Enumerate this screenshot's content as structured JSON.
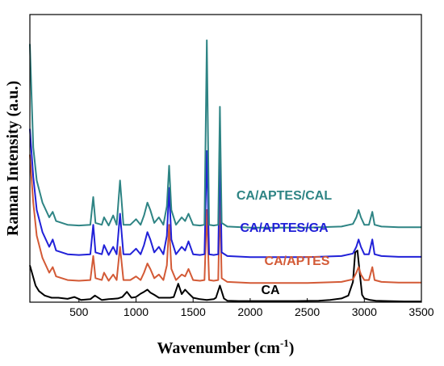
{
  "chart_data": {
    "type": "line",
    "title": "",
    "xlabel": "Wavenumber (cm",
    "xlabel_sup": "-1",
    "xlabel_end": ")",
    "ylabel": "Raman Intensity (a.u.)",
    "xlim": [
      70,
      3500
    ],
    "x_ticks": [
      500,
      1000,
      1500,
      2000,
      2500,
      3000,
      3500
    ],
    "x_tick_labels": [
      "500",
      "1000",
      "1500",
      "2000",
      "2500",
      "3000",
      "3500"
    ],
    "y_ticks_shown": false,
    "grid": false,
    "legend": "none",
    "series": [
      {
        "name": "CA",
        "color": "#000000",
        "baseline": 0.0,
        "x": [
          70,
          120,
          150,
          200,
          260,
          320,
          400,
          460,
          520,
          600,
          640,
          700,
          760,
          800,
          840,
          880,
          920,
          960,
          1000,
          1040,
          1070,
          1100,
          1125,
          1160,
          1200,
          1250,
          1300,
          1330,
          1370,
          1400,
          1430,
          1460,
          1500,
          1560,
          1620,
          1680,
          1700,
          1735,
          1770,
          1800,
          1900,
          2000,
          2200,
          2400,
          2600,
          2700,
          2800,
          2860,
          2900,
          2920,
          2940,
          2960,
          2980,
          3000,
          3050,
          3100,
          3200,
          3350,
          3500
        ],
        "y": [
          0.1,
          0.045,
          0.03,
          0.018,
          0.012,
          0.012,
          0.009,
          0.014,
          0.006,
          0.008,
          0.018,
          0.006,
          0.008,
          0.009,
          0.01,
          0.014,
          0.028,
          0.012,
          0.014,
          0.023,
          0.028,
          0.034,
          0.026,
          0.02,
          0.012,
          0.012,
          0.012,
          0.014,
          0.05,
          0.022,
          0.034,
          0.024,
          0.012,
          0.008,
          0.006,
          0.008,
          0.012,
          0.045,
          0.01,
          0.004,
          0.003,
          0.003,
          0.003,
          0.003,
          0.004,
          0.006,
          0.01,
          0.018,
          0.055,
          0.135,
          0.14,
          0.08,
          0.02,
          0.01,
          0.006,
          0.004,
          0.003,
          0.002,
          0.002
        ]
      },
      {
        "name": "CA/APTES",
        "color": "#d35a36",
        "baseline": 0.05,
        "x": [
          70,
          100,
          130,
          180,
          240,
          270,
          300,
          400,
          500,
          600,
          625,
          645,
          700,
          720,
          760,
          800,
          830,
          860,
          890,
          950,
          1000,
          1040,
          1070,
          1100,
          1125,
          1160,
          1200,
          1240,
          1270,
          1290,
          1310,
          1350,
          1400,
          1430,
          1460,
          1500,
          1560,
          1600,
          1620,
          1640,
          1680,
          1720,
          1735,
          1750,
          1800,
          2000,
          2500,
          2800,
          2900,
          2930,
          2950,
          2970,
          3000,
          3040,
          3070,
          3090,
          3150,
          3300,
          3500
        ],
        "y": [
          0.35,
          0.22,
          0.13,
          0.07,
          0.03,
          0.045,
          0.02,
          0.01,
          0.008,
          0.01,
          0.075,
          0.015,
          0.01,
          0.03,
          0.008,
          0.025,
          0.01,
          0.1,
          0.01,
          0.01,
          0.02,
          0.01,
          0.03,
          0.055,
          0.04,
          0.015,
          0.025,
          0.01,
          0.05,
          0.16,
          0.04,
          0.01,
          0.025,
          0.02,
          0.04,
          0.01,
          0.008,
          0.01,
          0.2,
          0.01,
          0.008,
          0.01,
          0.23,
          0.015,
          0.005,
          0.002,
          0.002,
          0.005,
          0.012,
          0.03,
          0.045,
          0.025,
          0.01,
          0.01,
          0.045,
          0.01,
          0.005,
          0.003,
          0.003
        ]
      },
      {
        "name": "CA/APTES/GA",
        "color": "#2121d8",
        "baseline": 0.12,
        "x": [
          70,
          100,
          130,
          180,
          240,
          270,
          300,
          400,
          500,
          600,
          625,
          645,
          700,
          720,
          760,
          800,
          830,
          860,
          890,
          950,
          1000,
          1040,
          1070,
          1100,
          1125,
          1160,
          1200,
          1240,
          1270,
          1290,
          1310,
          1350,
          1400,
          1430,
          1460,
          1500,
          1560,
          1600,
          1620,
          1640,
          1680,
          1720,
          1735,
          1750,
          1800,
          2000,
          2500,
          2800,
          2900,
          2930,
          2950,
          2970,
          3000,
          3040,
          3070,
          3090,
          3150,
          3300,
          3500
        ],
        "y": [
          0.35,
          0.22,
          0.13,
          0.07,
          0.03,
          0.05,
          0.02,
          0.01,
          0.008,
          0.01,
          0.09,
          0.015,
          0.01,
          0.035,
          0.008,
          0.03,
          0.01,
          0.12,
          0.01,
          0.01,
          0.025,
          0.01,
          0.035,
          0.07,
          0.05,
          0.015,
          0.03,
          0.01,
          0.06,
          0.19,
          0.05,
          0.01,
          0.03,
          0.02,
          0.045,
          0.01,
          0.008,
          0.01,
          0.29,
          0.01,
          0.008,
          0.01,
          0.29,
          0.015,
          0.005,
          0.002,
          0.002,
          0.005,
          0.012,
          0.03,
          0.05,
          0.03,
          0.01,
          0.01,
          0.05,
          0.01,
          0.005,
          0.003,
          0.003
        ]
      },
      {
        "name": "CA/APTES/CAL",
        "color": "#2e8484",
        "baseline": 0.2,
        "x": [
          70,
          100,
          130,
          180,
          240,
          270,
          300,
          400,
          500,
          600,
          625,
          645,
          700,
          720,
          760,
          800,
          830,
          860,
          890,
          950,
          1000,
          1040,
          1070,
          1100,
          1125,
          1160,
          1200,
          1240,
          1270,
          1290,
          1310,
          1350,
          1400,
          1430,
          1460,
          1500,
          1560,
          1600,
          1620,
          1640,
          1680,
          1720,
          1735,
          1750,
          1800,
          2000,
          2500,
          2800,
          2900,
          2930,
          2950,
          2970,
          3000,
          3040,
          3070,
          3090,
          3150,
          3300,
          3500
        ],
        "y": [
          0.5,
          0.22,
          0.13,
          0.07,
          0.03,
          0.045,
          0.02,
          0.01,
          0.008,
          0.01,
          0.085,
          0.015,
          0.01,
          0.03,
          0.008,
          0.035,
          0.01,
          0.13,
          0.01,
          0.01,
          0.025,
          0.01,
          0.035,
          0.07,
          0.05,
          0.015,
          0.03,
          0.01,
          0.06,
          0.17,
          0.05,
          0.01,
          0.03,
          0.02,
          0.04,
          0.01,
          0.008,
          0.01,
          0.51,
          0.01,
          0.008,
          0.01,
          0.33,
          0.015,
          0.005,
          0.002,
          0.002,
          0.005,
          0.012,
          0.03,
          0.05,
          0.03,
          0.01,
          0.01,
          0.045,
          0.01,
          0.005,
          0.003,
          0.003
        ]
      }
    ]
  }
}
